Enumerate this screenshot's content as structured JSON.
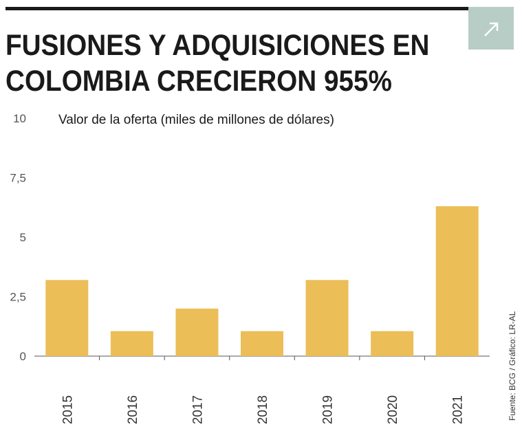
{
  "header": {
    "title_line1": "FUSIONES Y ADQUISICIONES EN",
    "title_line2": "COLOMBIA CRECIERON 955%",
    "expand_icon": "arrow-up-right-icon"
  },
  "source": "Fuente: BCG / Gráfico: LR-AL",
  "colors": {
    "bar": "#ebbe58",
    "axis": "#555555",
    "text": "#1a1a1a",
    "expand_bg": "#b7cdc6"
  },
  "chart_data": {
    "type": "bar",
    "title": "Valor de la oferta (miles de millones de dólares)",
    "categories": [
      "2015",
      "2016",
      "2017",
      "2018",
      "2019",
      "2020",
      "2021"
    ],
    "values": [
      3.2,
      1.05,
      2.0,
      1.05,
      3.2,
      1.05,
      6.3
    ],
    "ylim": [
      0,
      10
    ],
    "yticks": [
      0,
      2.5,
      5,
      7.5,
      10
    ],
    "ytick_labels": [
      "0",
      "2,5",
      "5",
      "7,5",
      "10"
    ],
    "grid": false,
    "legend": "none"
  }
}
